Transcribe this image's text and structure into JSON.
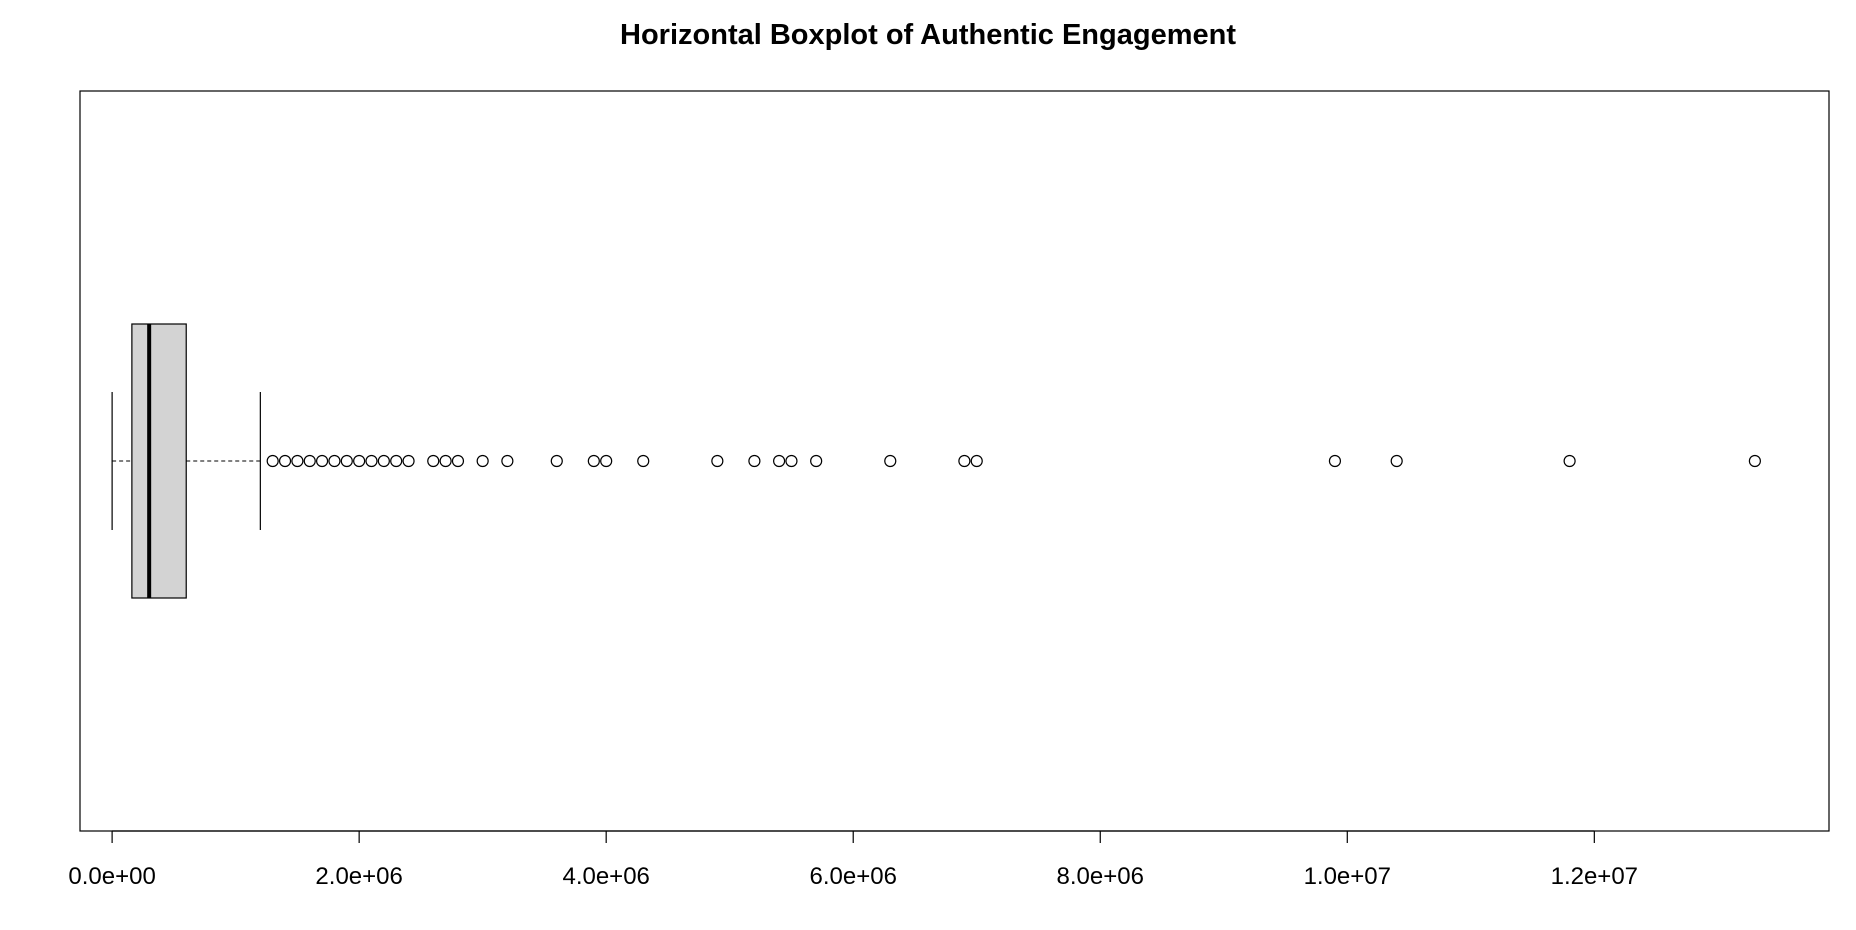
{
  "chart_data": {
    "type": "boxplot",
    "orientation": "horizontal",
    "title": "Horizontal Boxplot of Authentic Engagement",
    "xlabel": "",
    "ylabel": "",
    "xlim": [
      -260000,
      13900000
    ],
    "x_ticks": [
      0,
      2000000,
      4000000,
      6000000,
      8000000,
      10000000,
      12000000
    ],
    "x_tick_labels": [
      "0.0e+00",
      "2.0e+06",
      "4.0e+06",
      "6.0e+06",
      "8.0e+06",
      "1.0e+07",
      "1.2e+07"
    ],
    "grid": false,
    "legend": "none",
    "box": {
      "whisker_low": 0,
      "q1": 160000,
      "median": 300000,
      "q3": 600000,
      "whisker_high": 1200000
    },
    "outliers": [
      1300000,
      1400000,
      1500000,
      1600000,
      1700000,
      1800000,
      1900000,
      2000000,
      2100000,
      2200000,
      2300000,
      2400000,
      2600000,
      2700000,
      2800000,
      3000000,
      3200000,
      3600000,
      3900000,
      4000000,
      4300000,
      4900000,
      5200000,
      5400000,
      5500000,
      5700000,
      6300000,
      6900000,
      7000000,
      9900000,
      10400000,
      11800000,
      13300000
    ],
    "colors": {
      "box_fill": "#d3d3d3",
      "stroke": "#000000",
      "background": "#ffffff"
    }
  }
}
